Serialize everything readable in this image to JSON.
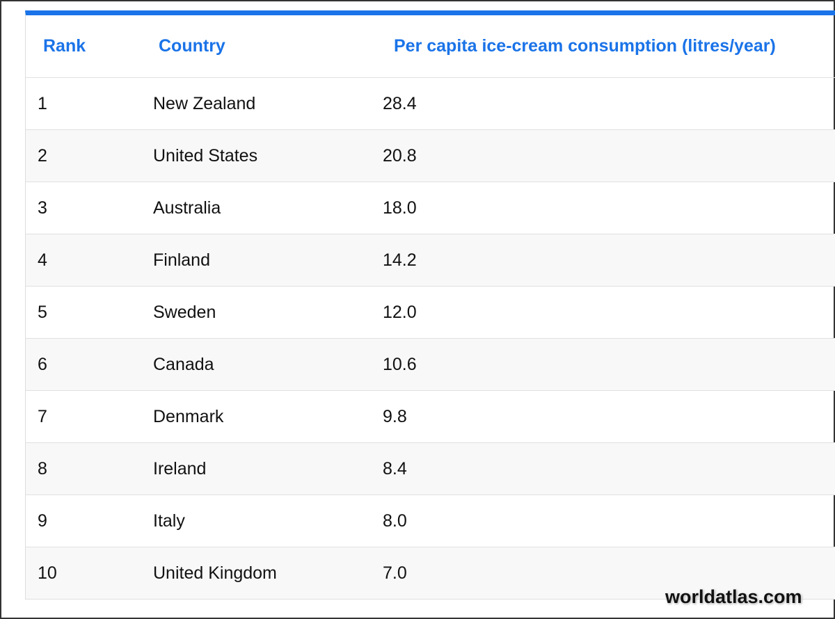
{
  "headers": {
    "rank": "Rank",
    "country": "Country",
    "value": "Per capita ice-cream consumption (litres/year)"
  },
  "rows": [
    {
      "rank": "1",
      "country": "New Zealand",
      "value": "28.4"
    },
    {
      "rank": "2",
      "country": "United States",
      "value": "20.8"
    },
    {
      "rank": "3",
      "country": "Australia",
      "value": "18.0"
    },
    {
      "rank": "4",
      "country": "Finland",
      "value": "14.2"
    },
    {
      "rank": "5",
      "country": "Sweden",
      "value": "12.0"
    },
    {
      "rank": "6",
      "country": "Canada",
      "value": "10.6"
    },
    {
      "rank": "7",
      "country": "Denmark",
      "value": "9.8"
    },
    {
      "rank": "8",
      "country": "Ireland",
      "value": "8.4"
    },
    {
      "rank": "9",
      "country": "Italy",
      "value": "8.0"
    },
    {
      "rank": "10",
      "country": "United Kingdom",
      "value": "7.0"
    }
  ],
  "watermark": "worldatlas.com",
  "colors": {
    "accent": "#1a73e8"
  }
}
